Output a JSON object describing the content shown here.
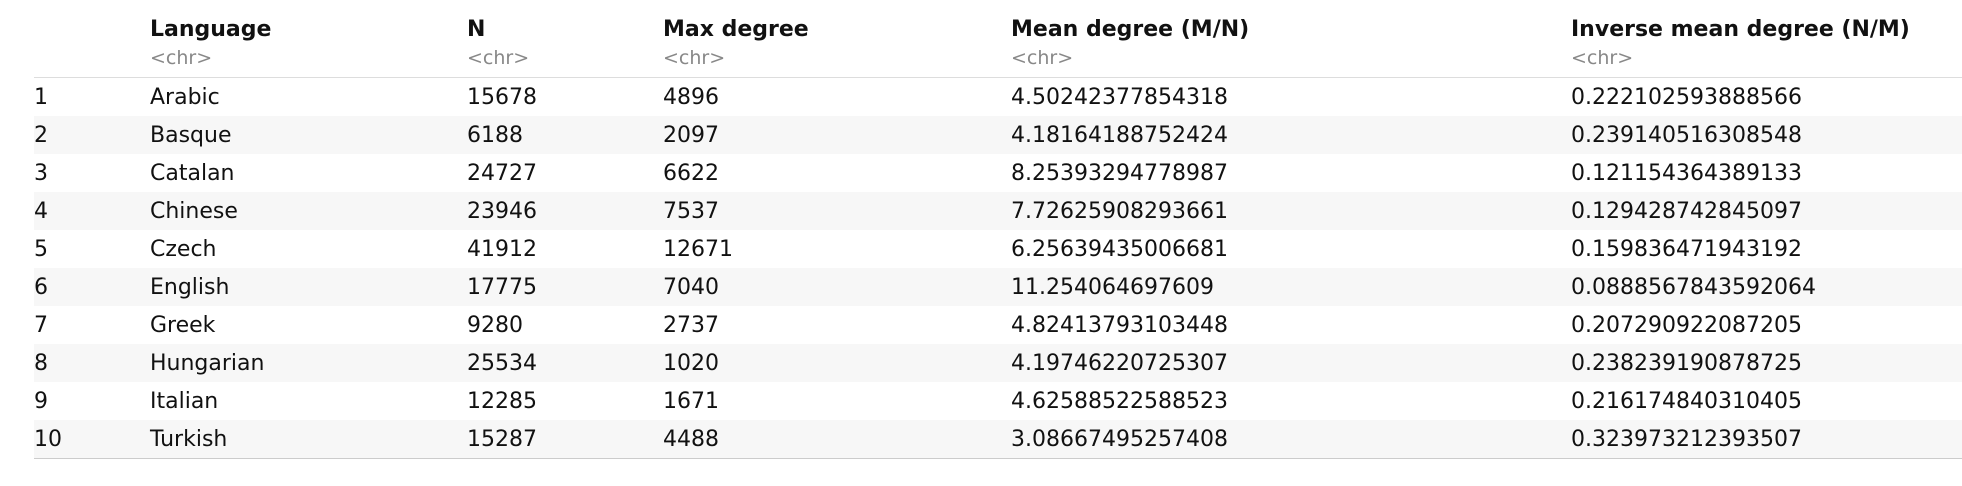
{
  "table": {
    "columns": [
      {
        "name": "Language",
        "type": "<chr>"
      },
      {
        "name": "N",
        "type": "<chr>"
      },
      {
        "name": "Max degree",
        "type": "<chr>"
      },
      {
        "name": "Mean degree (M/N)",
        "type": "<chr>"
      },
      {
        "name": "Inverse mean degree (N/M)",
        "type": "<chr>"
      }
    ],
    "rows": [
      {
        "index": "1",
        "language": "Arabic",
        "n": "15678",
        "max_degree": "4896",
        "mean_degree": "4.50242377854318",
        "inverse_mean_degree": "0.222102593888566"
      },
      {
        "index": "2",
        "language": "Basque",
        "n": "6188",
        "max_degree": "2097",
        "mean_degree": "4.18164188752424",
        "inverse_mean_degree": "0.239140516308548"
      },
      {
        "index": "3",
        "language": "Catalan",
        "n": "24727",
        "max_degree": "6622",
        "mean_degree": "8.25393294778987",
        "inverse_mean_degree": "0.121154364389133"
      },
      {
        "index": "4",
        "language": "Chinese",
        "n": "23946",
        "max_degree": "7537",
        "mean_degree": "7.72625908293661",
        "inverse_mean_degree": "0.129428742845097"
      },
      {
        "index": "5",
        "language": "Czech",
        "n": "41912",
        "max_degree": "12671",
        "mean_degree": "6.25639435006681",
        "inverse_mean_degree": "0.159836471943192"
      },
      {
        "index": "6",
        "language": "English",
        "n": "17775",
        "max_degree": "7040",
        "mean_degree": "11.254064697609",
        "inverse_mean_degree": "0.0888567843592064"
      },
      {
        "index": "7",
        "language": "Greek",
        "n": "9280",
        "max_degree": "2737",
        "mean_degree": "4.82413793103448",
        "inverse_mean_degree": "0.207290922087205"
      },
      {
        "index": "8",
        "language": "Hungarian",
        "n": "25534",
        "max_degree": "1020",
        "mean_degree": "4.19746220725307",
        "inverse_mean_degree": "0.238239190878725"
      },
      {
        "index": "9",
        "language": "Italian",
        "n": "12285",
        "max_degree": "1671",
        "mean_degree": "4.62588522588523",
        "inverse_mean_degree": "0.216174840310405"
      },
      {
        "index": "10",
        "language": "Turkish",
        "n": "15287",
        "max_degree": "4488",
        "mean_degree": "3.08667495257408",
        "inverse_mean_degree": "0.323973212393507"
      }
    ]
  }
}
